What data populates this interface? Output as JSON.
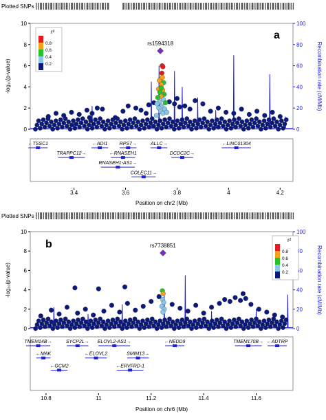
{
  "colors": {
    "axis_left": "#000000",
    "axis_right": "#1f1fd6",
    "recomb_line": "#1f1fd6",
    "lead_snp": "#7a2fbf",
    "r2_scale": [
      "#0b1a7a",
      "#87c7ea",
      "#26c22a",
      "#f6a11a",
      "#e41a1c"
    ]
  },
  "chart_data": [
    {
      "type": "scatter",
      "panel_label": "a",
      "track_label": "Plotted SNPs",
      "xlabel": "Position on chr2 (Mb)",
      "ylabel": "-log₁₀(p-value)",
      "ylabel_right": "Recombination rate (cM/Mb)",
      "xlim": [
        3.23,
        4.25
      ],
      "ylim": [
        0,
        10
      ],
      "ylim_right": [
        0,
        100
      ],
      "x_ticks": [
        3.4,
        3.6,
        3.8,
        4.0,
        4.2
      ],
      "y_ticks": [
        0,
        2,
        4,
        6,
        8,
        10
      ],
      "y_ticks_right": [
        0,
        20,
        40,
        60,
        80,
        100
      ],
      "legend": {
        "title": "r²",
        "position": "top-left",
        "labels": [
          "0.8",
          "0.6",
          "0.4",
          "0.2"
        ]
      },
      "lead_snp": {
        "name": "rs1594318",
        "x": 3.735,
        "y": 7.4
      },
      "highlight_points": [
        {
          "x": 3.742,
          "y": 6.0,
          "r2": "0.8-1.0"
        },
        {
          "x": 3.745,
          "y": 5.9,
          "r2": "0.8-1.0"
        },
        {
          "x": 3.741,
          "y": 5.3,
          "r2": "0.8-1.0"
        },
        {
          "x": 3.736,
          "y": 4.7,
          "r2": "0.6-0.8"
        },
        {
          "x": 3.731,
          "y": 4.6,
          "r2": "0.6-0.8"
        },
        {
          "x": 3.748,
          "y": 4.4,
          "r2": "0.4-0.6"
        },
        {
          "x": 3.739,
          "y": 4.2,
          "r2": "0.6-0.8"
        },
        {
          "x": 3.728,
          "y": 3.8,
          "r2": "0.6-0.8"
        },
        {
          "x": 3.744,
          "y": 3.7,
          "r2": "0.6-0.8"
        },
        {
          "x": 3.733,
          "y": 3.5,
          "r2": "0.4-0.6"
        },
        {
          "x": 3.75,
          "y": 3.3,
          "r2": "0.4-0.6"
        },
        {
          "x": 3.738,
          "y": 3.1,
          "r2": "0.6-0.8"
        },
        {
          "x": 3.725,
          "y": 3.0,
          "r2": "0.4-0.6"
        },
        {
          "x": 3.747,
          "y": 2.8,
          "r2": "0.2-0.4"
        },
        {
          "x": 3.732,
          "y": 2.6,
          "r2": "0.2-0.4"
        },
        {
          "x": 3.755,
          "y": 2.5,
          "r2": "0.4-0.6"
        },
        {
          "x": 3.722,
          "y": 2.4,
          "r2": "0.2-0.4"
        },
        {
          "x": 3.741,
          "y": 2.2,
          "r2": "0.2-0.4"
        },
        {
          "x": 3.729,
          "y": 2.0,
          "r2": "0.2-0.4"
        },
        {
          "x": 3.752,
          "y": 1.9,
          "r2": "0.2-0.4"
        },
        {
          "x": 3.736,
          "y": 1.7,
          "r2": "0.2-0.4"
        },
        {
          "x": 3.745,
          "y": 1.5,
          "r2": "0.2-0.4"
        },
        {
          "x": 3.76,
          "y": 1.6,
          "r2": "0.2-0.4"
        },
        {
          "x": 3.72,
          "y": 1.3,
          "r2": "0.2-0.4"
        },
        {
          "x": 3.739,
          "y": 3.9,
          "r2": "0.4-0.6"
        },
        {
          "x": 3.743,
          "y": 4.9,
          "r2": "0.6-0.8"
        }
      ],
      "background_points": [
        {
          "x": 3.3,
          "y": 1.2
        },
        {
          "x": 3.33,
          "y": 1.5
        },
        {
          "x": 3.36,
          "y": 1.3
        },
        {
          "x": 3.39,
          "y": 1.6
        },
        {
          "x": 3.42,
          "y": 1.4
        },
        {
          "x": 3.45,
          "y": 1.8
        },
        {
          "x": 3.47,
          "y": 1.5
        },
        {
          "x": 3.49,
          "y": 2.0
        },
        {
          "x": 3.51,
          "y": 1.9
        },
        {
          "x": 3.56,
          "y": 1.1
        },
        {
          "x": 3.59,
          "y": 1.7
        },
        {
          "x": 3.61,
          "y": 2.2
        },
        {
          "x": 3.64,
          "y": 2.0
        },
        {
          "x": 3.66,
          "y": 1.8
        },
        {
          "x": 3.69,
          "y": 2.3
        },
        {
          "x": 3.71,
          "y": 2.5
        },
        {
          "x": 3.77,
          "y": 2.6
        },
        {
          "x": 3.79,
          "y": 2.4
        },
        {
          "x": 3.81,
          "y": 2.1
        },
        {
          "x": 3.83,
          "y": 2.2
        },
        {
          "x": 3.85,
          "y": 1.9
        },
        {
          "x": 3.87,
          "y": 2.7
        },
        {
          "x": 3.9,
          "y": 2.4
        },
        {
          "x": 3.93,
          "y": 1.7
        },
        {
          "x": 3.96,
          "y": 2.0
        },
        {
          "x": 3.99,
          "y": 1.6
        },
        {
          "x": 4.02,
          "y": 1.5
        },
        {
          "x": 4.05,
          "y": 1.9
        },
        {
          "x": 4.08,
          "y": 1.4
        },
        {
          "x": 4.11,
          "y": 1.7
        },
        {
          "x": 4.14,
          "y": 1.3
        },
        {
          "x": 4.17,
          "y": 1.6
        },
        {
          "x": 4.2,
          "y": 1.2
        },
        {
          "x": 3.8,
          "y": 2.9
        },
        {
          "x": 3.68,
          "y": 1.5
        },
        {
          "x": 3.46,
          "y": 1.1
        }
      ],
      "recombination_spikes": [
        {
          "x": 3.4,
          "rate": 10
        },
        {
          "x": 3.47,
          "rate": 22
        },
        {
          "x": 3.7,
          "rate": 45
        },
        {
          "x": 3.73,
          "rate": 60
        },
        {
          "x": 3.79,
          "rate": 55
        },
        {
          "x": 3.82,
          "rate": 40
        },
        {
          "x": 3.88,
          "rate": 30
        },
        {
          "x": 3.95,
          "rate": 18
        },
        {
          "x": 4.02,
          "rate": 70
        },
        {
          "x": 4.16,
          "rate": 52
        },
        {
          "x": 4.22,
          "rate": 12
        }
      ],
      "genes": [
        {
          "name": "TSSC1",
          "x": 3.26,
          "row": 0,
          "arrow": "left"
        },
        {
          "name": "ADI1",
          "x": 3.5,
          "row": 0,
          "arrow": "left"
        },
        {
          "name": "RPS7",
          "x": 3.61,
          "row": 0,
          "arrow": "right"
        },
        {
          "name": "ALLC",
          "x": 3.73,
          "row": 0,
          "arrow": "right"
        },
        {
          "name": "LINC01304",
          "x": 4.03,
          "row": 0,
          "arrow": "left"
        },
        {
          "name": "TRAPPC12",
          "x": 3.39,
          "row": 1,
          "arrow": "right"
        },
        {
          "name": "RNASEH1",
          "x": 3.59,
          "row": 1,
          "arrow": "left"
        },
        {
          "name": "DCDC2C",
          "x": 3.82,
          "row": 1,
          "arrow": "right"
        },
        {
          "name": "RNASEH1-AS1",
          "x": 3.57,
          "row": 2,
          "arrow": "right"
        },
        {
          "name": "COLEC11",
          "x": 3.67,
          "row": 3,
          "arrow": "right"
        }
      ]
    },
    {
      "type": "scatter",
      "panel_label": "b",
      "track_label": "Plotted SNPs",
      "xlabel": "Position on chr6 (Mb)",
      "ylabel": "-log₁₀(p-value)",
      "ylabel_right": "Recombination rate (cM/Mb)",
      "xlim": [
        10.74,
        11.74
      ],
      "ylim": [
        0,
        10
      ],
      "ylim_right": [
        0,
        100
      ],
      "x_ticks": [
        10.8,
        11.0,
        11.2,
        11.4,
        11.6
      ],
      "y_ticks": [
        0,
        2,
        4,
        6,
        8,
        10
      ],
      "y_ticks_right": [
        0,
        20,
        40,
        60,
        80,
        100
      ],
      "legend": {
        "title": "r²",
        "position": "top-right",
        "labels": [
          "0.8",
          "0.6",
          "0.4",
          "0.2"
        ]
      },
      "lead_snp": {
        "name": "rs7738851",
        "x": 11.245,
        "y": 7.8
      },
      "highlight_points": [
        {
          "x": 11.243,
          "y": 3.9,
          "r2": "0.4-0.6"
        },
        {
          "x": 11.246,
          "y": 3.6,
          "r2": "0.6-0.8"
        },
        {
          "x": 11.244,
          "y": 3.0,
          "r2": "0.2-0.4"
        },
        {
          "x": 11.248,
          "y": 2.7,
          "r2": "0.2-0.4"
        },
        {
          "x": 11.241,
          "y": 2.3,
          "r2": "0.2-0.4"
        },
        {
          "x": 11.25,
          "y": 2.0,
          "r2": "0.2-0.4"
        },
        {
          "x": 11.245,
          "y": 1.7,
          "r2": "0.2-0.4"
        }
      ],
      "background_points": [
        {
          "x": 10.78,
          "y": 1.3
        },
        {
          "x": 10.82,
          "y": 1.9
        },
        {
          "x": 10.85,
          "y": 1.5
        },
        {
          "x": 10.88,
          "y": 2.2
        },
        {
          "x": 10.92,
          "y": 1.6
        },
        {
          "x": 10.95,
          "y": 2.0
        },
        {
          "x": 10.98,
          "y": 1.4
        },
        {
          "x": 11.02,
          "y": 1.8
        },
        {
          "x": 11.05,
          "y": 2.4
        },
        {
          "x": 11.08,
          "y": 1.7
        },
        {
          "x": 11.11,
          "y": 2.6
        },
        {
          "x": 11.14,
          "y": 1.9
        },
        {
          "x": 11.17,
          "y": 2.3
        },
        {
          "x": 11.2,
          "y": 2.8
        },
        {
          "x": 11.28,
          "y": 2.5
        },
        {
          "x": 11.31,
          "y": 2.1
        },
        {
          "x": 11.34,
          "y": 1.8
        },
        {
          "x": 11.37,
          "y": 2.4
        },
        {
          "x": 11.4,
          "y": 1.6
        },
        {
          "x": 11.43,
          "y": 2.2
        },
        {
          "x": 11.46,
          "y": 2.6
        },
        {
          "x": 11.48,
          "y": 3.0
        },
        {
          "x": 11.5,
          "y": 2.8
        },
        {
          "x": 11.52,
          "y": 3.2
        },
        {
          "x": 11.54,
          "y": 2.9
        },
        {
          "x": 11.56,
          "y": 3.1
        },
        {
          "x": 11.58,
          "y": 2.5
        },
        {
          "x": 11.61,
          "y": 2.0
        },
        {
          "x": 11.64,
          "y": 1.7
        },
        {
          "x": 11.67,
          "y": 1.4
        },
        {
          "x": 11.7,
          "y": 1.2
        },
        {
          "x": 10.91,
          "y": 4.2
        },
        {
          "x": 11.0,
          "y": 4.1
        },
        {
          "x": 11.1,
          "y": 4.3
        },
        {
          "x": 11.23,
          "y": 3.3
        },
        {
          "x": 11.55,
          "y": 3.6
        }
      ],
      "recombination_spikes": [
        {
          "x": 10.83,
          "rate": 22
        },
        {
          "x": 10.96,
          "rate": 15
        },
        {
          "x": 11.09,
          "rate": 25
        },
        {
          "x": 11.25,
          "rate": 38
        },
        {
          "x": 11.33,
          "rate": 55
        },
        {
          "x": 11.43,
          "rate": 18
        },
        {
          "x": 11.6,
          "rate": 20
        },
        {
          "x": 11.72,
          "rate": 35
        }
      ],
      "genes": [
        {
          "name": "TMEM14B",
          "x": 10.77,
          "row": 0,
          "arrow": "right"
        },
        {
          "name": "SYCP2L",
          "x": 10.92,
          "row": 0,
          "arrow": "right"
        },
        {
          "name": "ELOVL2-AS1",
          "x": 11.06,
          "row": 0,
          "arrow": "right"
        },
        {
          "name": "NEDD9",
          "x": 11.29,
          "row": 0,
          "arrow": "left"
        },
        {
          "name": "TMEM170B",
          "x": 11.57,
          "row": 0,
          "arrow": "right"
        },
        {
          "name": "ADTRP",
          "x": 11.68,
          "row": 0,
          "arrow": "left"
        },
        {
          "name": "MAK",
          "x": 10.79,
          "row": 1,
          "arrow": "left"
        },
        {
          "name": "ELOVL2",
          "x": 10.99,
          "row": 1,
          "arrow": "left"
        },
        {
          "name": "SMIM13",
          "x": 11.15,
          "row": 1,
          "arrow": "right"
        },
        {
          "name": "GCM2",
          "x": 10.85,
          "row": 2,
          "arrow": "left"
        },
        {
          "name": "ERVFRD-1",
          "x": 11.12,
          "row": 2,
          "arrow": "left"
        }
      ]
    }
  ]
}
